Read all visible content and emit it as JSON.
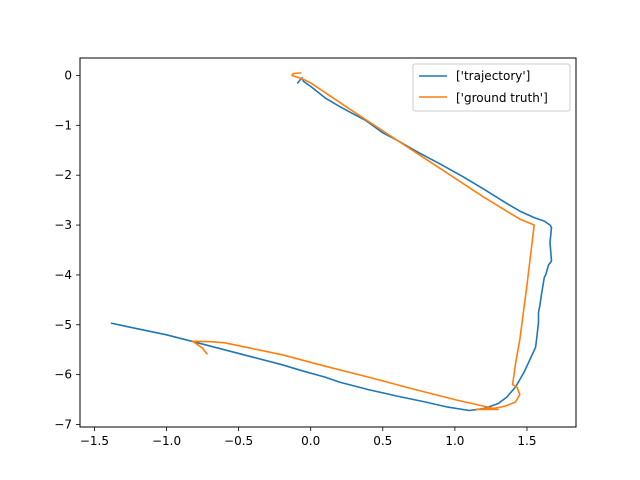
{
  "chart_data": {
    "type": "line",
    "title": "",
    "xlabel": "",
    "ylabel": "",
    "xlim": [
      -1.6,
      1.84
    ],
    "ylim": [
      -7.05,
      0.35
    ],
    "xticks": [
      -1.5,
      -1.0,
      -0.5,
      0.0,
      0.5,
      1.0,
      1.5
    ],
    "xtick_labels": [
      "−1.5",
      "−1.0",
      "−0.5",
      "0.0",
      "0.5",
      "1.0",
      "1.5"
    ],
    "yticks": [
      0,
      -1,
      -2,
      -3,
      -4,
      -5,
      -6,
      -7
    ],
    "ytick_labels": [
      "0",
      "−1",
      "−2",
      "−3",
      "−4",
      "−5",
      "−6",
      "−7"
    ],
    "grid": false,
    "legend_position": "top-right",
    "series": [
      {
        "name": "['trajectory']",
        "color": "#1f77b4",
        "x": [
          -0.09,
          -0.07,
          -0.06,
          -0.05,
          0.0,
          0.1,
          0.2,
          0.3,
          0.38,
          0.5,
          0.6,
          0.75,
          0.9,
          1.05,
          1.2,
          1.35,
          1.45,
          1.55,
          1.62,
          1.66,
          1.67,
          1.66,
          1.67,
          1.65,
          1.63,
          1.62,
          1.6,
          1.59,
          1.58,
          1.58,
          1.57,
          1.56,
          1.52,
          1.48,
          1.45,
          1.42,
          1.39,
          1.36,
          1.3,
          1.2,
          1.1,
          0.95,
          0.8,
          0.6,
          0.4,
          0.2,
          0.1,
          -0.05,
          -0.2,
          -0.4,
          -0.6,
          -0.8,
          -1.0,
          -1.2,
          -1.38
        ],
        "y": [
          -0.15,
          -0.08,
          -0.05,
          -0.12,
          -0.22,
          -0.45,
          -0.62,
          -0.78,
          -0.9,
          -1.15,
          -1.3,
          -1.55,
          -1.78,
          -2.02,
          -2.28,
          -2.55,
          -2.72,
          -2.85,
          -2.92,
          -3.0,
          -3.05,
          -3.35,
          -3.72,
          -3.8,
          -4.0,
          -4.05,
          -4.4,
          -4.6,
          -4.75,
          -4.95,
          -5.2,
          -5.45,
          -5.7,
          -5.95,
          -6.1,
          -6.25,
          -6.35,
          -6.45,
          -6.58,
          -6.68,
          -6.72,
          -6.65,
          -6.55,
          -6.43,
          -6.3,
          -6.15,
          -6.05,
          -5.93,
          -5.8,
          -5.65,
          -5.5,
          -5.35,
          -5.2,
          -5.08,
          -4.97
        ]
      },
      {
        "name": "['ground truth']",
        "color": "#ff7f0e",
        "x": [
          -0.07,
          -0.12,
          -0.13,
          -0.1,
          -0.05,
          0.0,
          0.3,
          0.6,
          0.9,
          1.2,
          1.45,
          1.55,
          1.5,
          1.45,
          1.42,
          1.4,
          1.43,
          1.45,
          1.42,
          1.35,
          1.28,
          1.15,
          1.3,
          1.0,
          0.7,
          0.4,
          0.1,
          -0.2,
          -0.4,
          -0.6,
          -0.7,
          -0.82,
          -0.75,
          -0.72
        ],
        "y": [
          0.05,
          0.04,
          0.0,
          -0.03,
          -0.08,
          -0.15,
          -0.73,
          -1.3,
          -1.87,
          -2.44,
          -2.88,
          -3.0,
          -4.2,
          -5.3,
          -5.8,
          -6.2,
          -6.25,
          -6.4,
          -6.55,
          -6.63,
          -6.67,
          -6.7,
          -6.7,
          -6.5,
          -6.28,
          -6.05,
          -5.83,
          -5.6,
          -5.48,
          -5.36,
          -5.34,
          -5.33,
          -5.47,
          -5.58
        ]
      }
    ]
  }
}
